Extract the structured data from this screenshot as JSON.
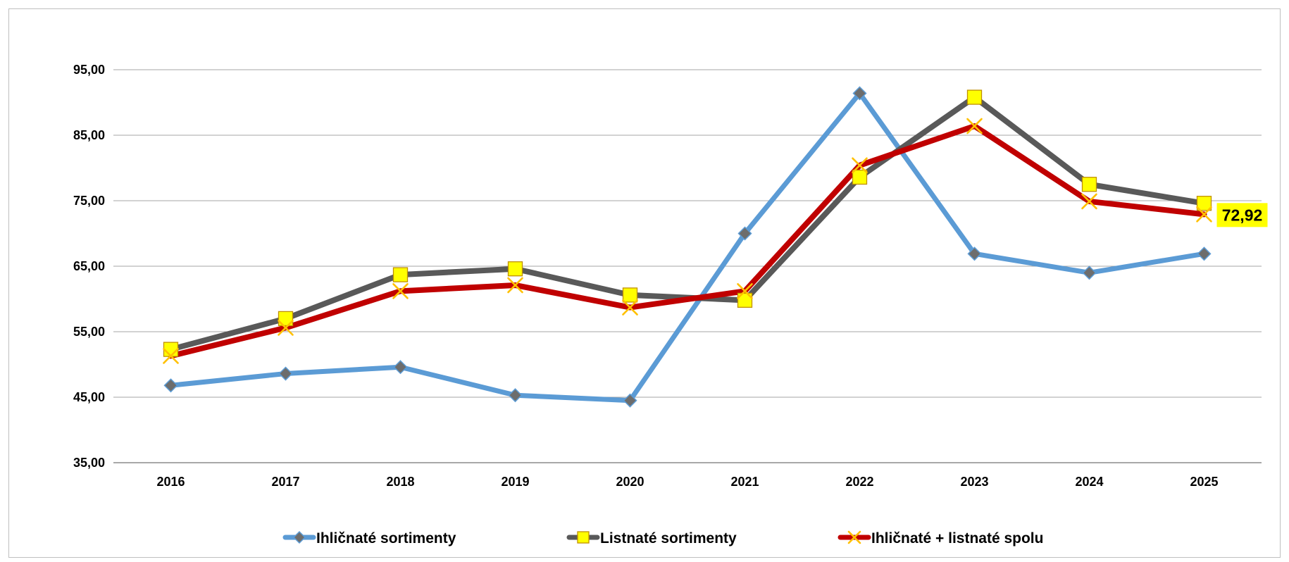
{
  "chart_data": {
    "type": "line",
    "title": "",
    "xlabel": "",
    "ylabel": "",
    "x": [
      "2016",
      "2017",
      "2018",
      "2019",
      "2020",
      "2021",
      "2022",
      "2023",
      "2024",
      "2025"
    ],
    "ylim": [
      35,
      95
    ],
    "yticks": [
      35,
      45,
      55,
      65,
      75,
      85,
      95
    ],
    "ytick_labels": [
      "35,00",
      "45,00",
      "55,00",
      "65,00",
      "75,00",
      "85,00",
      "95,00"
    ],
    "grid": "horizontal",
    "legend_position": "bottom",
    "series": [
      {
        "name": "Ihličnaté sortimenty",
        "values": [
          46.8,
          48.6,
          49.6,
          45.3,
          44.5,
          70.0,
          91.4,
          66.9,
          64.0,
          66.9
        ],
        "color": "#5b9bd5",
        "marker": "diamond",
        "marker_color": "#6d6d6d"
      },
      {
        "name": "Listnaté sortimenty",
        "values": [
          52.3,
          57.0,
          63.7,
          64.6,
          60.6,
          59.8,
          78.6,
          90.8,
          77.5,
          74.6
        ],
        "color": "#595959",
        "marker": "square",
        "marker_color": "#ffff00"
      },
      {
        "name": "Ihličnaté + listnaté spolu",
        "values": [
          51.3,
          55.6,
          61.2,
          62.1,
          58.7,
          61.2,
          80.4,
          86.4,
          74.9,
          72.92
        ],
        "color": "#c00000",
        "marker": "x",
        "marker_color": "#ffc000"
      }
    ],
    "annotations": [
      {
        "series_index": 2,
        "point_index": 9,
        "text": "72,92",
        "background": "#ffff00"
      }
    ]
  }
}
